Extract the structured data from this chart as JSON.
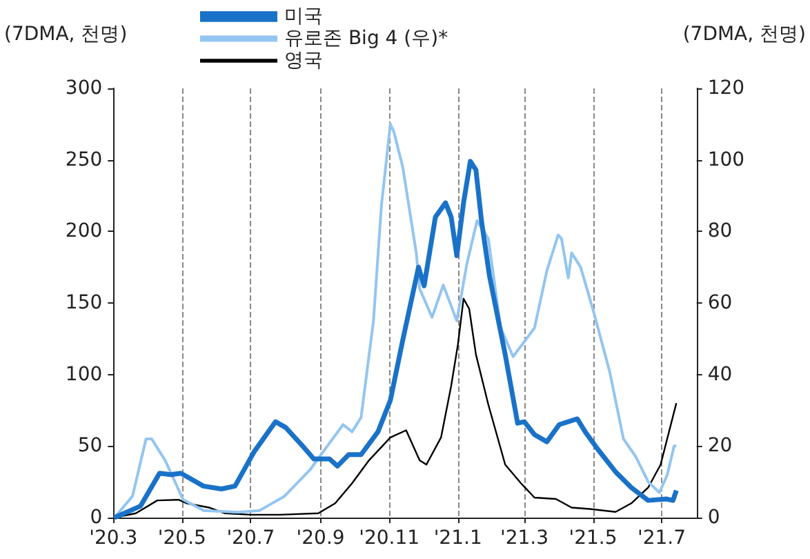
{
  "chart_data": {
    "type": "line",
    "ylabel": "(7DMA, 천명)",
    "y2label": "(7DMA, 천명)",
    "legend": "top",
    "grid": "x",
    "xlim": [
      "2020-03-01",
      "2021-08-01"
    ],
    "xticks": [
      {
        "value": "2020-03-01",
        "label": "'20.3"
      },
      {
        "value": "2020-05-01",
        "label": "'20.5"
      },
      {
        "value": "2020-07-01",
        "label": "'20.7"
      },
      {
        "value": "2020-09-01",
        "label": "'20.9"
      },
      {
        "value": "2020-11-01",
        "label": "'20.11"
      },
      {
        "value": "2021-01-01",
        "label": "'21.1"
      },
      {
        "value": "2021-03-01",
        "label": "'21.3"
      },
      {
        "value": "2021-05-01",
        "label": "'21.5"
      },
      {
        "value": "2021-07-01",
        "label": "'21.7"
      }
    ],
    "ylim": [
      0,
      300
    ],
    "yticks": [
      0,
      50,
      100,
      150,
      200,
      250,
      300
    ],
    "y2lim": [
      0,
      120
    ],
    "y2ticks": [
      0,
      20,
      40,
      60,
      80,
      100,
      120
    ],
    "series": [
      {
        "name": "미국",
        "color": "#1a72c8",
        "x": [
          "2020-03-02",
          "2020-03-25",
          "2020-04-11",
          "2020-04-21",
          "2020-04-30",
          "2020-05-20",
          "2020-06-05",
          "2020-06-17",
          "2020-07-04",
          "2020-07-23",
          "2020-08-01",
          "2020-08-15",
          "2020-08-26",
          "2020-09-09",
          "2020-09-16",
          "2020-09-26",
          "2020-10-07",
          "2020-10-22",
          "2020-11-02",
          "2020-11-13",
          "2020-11-27",
          "2020-12-02",
          "2020-12-12",
          "2020-12-21",
          "2020-12-26",
          "2020-12-31",
          "2021-01-06",
          "2021-01-12",
          "2021-01-17",
          "2021-01-22",
          "2021-01-29",
          "2021-02-12",
          "2021-02-23",
          "2021-03-01",
          "2021-03-10",
          "2021-03-21",
          "2021-04-01",
          "2021-04-17",
          "2021-04-24",
          "2021-05-05",
          "2021-05-21",
          "2021-06-04",
          "2021-06-19",
          "2021-07-05",
          "2021-07-11",
          "2021-07-14"
        ],
        "values": [
          0,
          8,
          31,
          30,
          31,
          22,
          20,
          22,
          46,
          67,
          63,
          51,
          41,
          41,
          36,
          44,
          44,
          60,
          82,
          124,
          175,
          162,
          210,
          220,
          210,
          183,
          220,
          249,
          243,
          207,
          169,
          114,
          66,
          67,
          58,
          53,
          65,
          69,
          60,
          48,
          32,
          21,
          12,
          13,
          12,
          19
        ]
      },
      {
        "name": "유로존 Big 4 (우)*",
        "axis": "y2",
        "color": "#93c5f1",
        "x": [
          "2020-03-02",
          "2020-03-18",
          "2020-03-30",
          "2020-04-04",
          "2020-04-16",
          "2020-05-02",
          "2020-05-20",
          "2020-06-20",
          "2020-07-09",
          "2020-07-31",
          "2020-08-23",
          "2020-09-07",
          "2020-09-21",
          "2020-09-29",
          "2020-10-07",
          "2020-10-18",
          "2020-10-25",
          "2020-11-02",
          "2020-11-05",
          "2020-11-13",
          "2020-11-25",
          "2020-11-28",
          "2020-12-09",
          "2020-12-19",
          "2020-12-31",
          "2021-01-09",
          "2021-01-18",
          "2021-01-28",
          "2021-02-08",
          "2021-02-19",
          "2021-03-10",
          "2021-03-21",
          "2021-03-31",
          "2021-04-03",
          "2021-04-09",
          "2021-04-12",
          "2021-04-20",
          "2021-05-02",
          "2021-05-16",
          "2021-05-28",
          "2021-06-08",
          "2021-06-19",
          "2021-06-29",
          "2021-07-06",
          "2021-07-12",
          "2021-07-14"
        ],
        "values": [
          0,
          6,
          22,
          22,
          16,
          5,
          2,
          1.5,
          2,
          6,
          13.5,
          20,
          26,
          24,
          28,
          55,
          87,
          110,
          108,
          98,
          74,
          64,
          56,
          65,
          55,
          71,
          83,
          78,
          53,
          45,
          53,
          69,
          79,
          78,
          67,
          74,
          70,
          57,
          40.5,
          22,
          17,
          10,
          7,
          12,
          20,
          20
        ]
      },
      {
        "name": "영국",
        "color": "#000000",
        "x": [
          "2020-03-02",
          "2020-03-21",
          "2020-04-09",
          "2020-04-28",
          "2020-05-05",
          "2020-05-25",
          "2020-06-08",
          "2020-07-01",
          "2020-07-27",
          "2020-08-30",
          "2020-09-14",
          "2020-09-29",
          "2020-10-14",
          "2020-11-02",
          "2020-11-16",
          "2020-11-28",
          "2020-12-04",
          "2020-12-17",
          "2020-12-26",
          "2021-01-01",
          "2021-01-06",
          "2021-01-11",
          "2021-01-17",
          "2021-01-28",
          "2021-02-12",
          "2021-02-26",
          "2021-03-10",
          "2021-03-29",
          "2021-04-12",
          "2021-04-28",
          "2021-05-21",
          "2021-06-04",
          "2021-06-19",
          "2021-06-30",
          "2021-07-14"
        ],
        "values": [
          0,
          3,
          12,
          12.5,
          10,
          7,
          3,
          2,
          2,
          3,
          10,
          24,
          40,
          56,
          61,
          40,
          37,
          56,
          92,
          121,
          153,
          146,
          114,
          79,
          37,
          24,
          14,
          13,
          7,
          6,
          4,
          10,
          21,
          37,
          80
        ]
      }
    ]
  }
}
